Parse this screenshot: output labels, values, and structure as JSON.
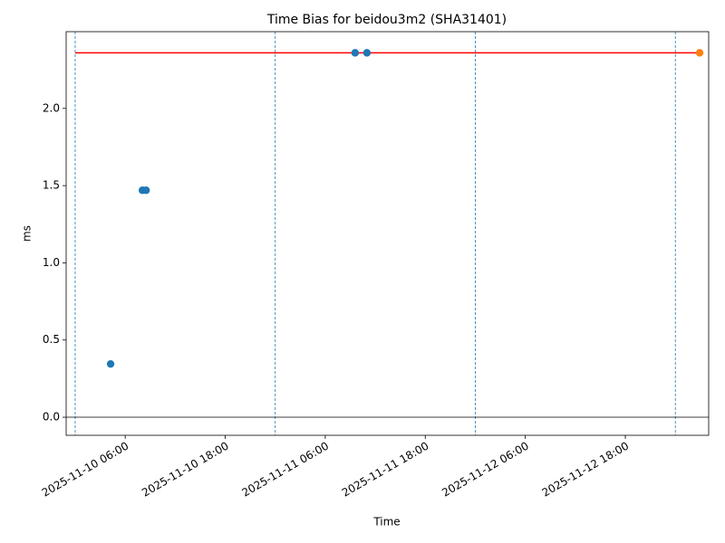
{
  "chart_data": {
    "type": "scatter",
    "title": "Time Bias for beidou3m2 (SHA31401)",
    "xlabel": "Time",
    "ylabel": "ms",
    "series": [
      {
        "color": "#1f77b4",
        "x": [
          "2025-11-10T04:15",
          "2025-11-10T08:04",
          "2025-11-10T08:30",
          "2025-11-11T09:35",
          "2025-11-11T11:00"
        ],
        "values": [
          0.345,
          1.47,
          1.47,
          2.36,
          2.36
        ]
      },
      {
        "color": "#ff7f0e",
        "x": [
          "2025-11-13T02:55"
        ],
        "values": [
          2.36
        ]
      }
    ],
    "reference_line": {
      "value": 2.36,
      "color": "#ff0000",
      "x": [
        "2025-11-10T00:00",
        "2025-11-13T02:55"
      ]
    },
    "zero_line": {
      "value": 0,
      "color": "#000000"
    },
    "vlines": {
      "color": "#1f77b4",
      "x": [
        "2025-11-10T00:00",
        "2025-11-11T00:00",
        "2025-11-12T00:00",
        "2025-11-13T00:00"
      ]
    },
    "xlim": [
      "2025-11-09T22:55",
      "2025-11-13T04:00"
    ],
    "xticks": [
      {
        "value": "2025-11-10T06:00",
        "label": "2025-11-10 06:00"
      },
      {
        "value": "2025-11-10T18:00",
        "label": "2025-11-10 18:00"
      },
      {
        "value": "2025-11-11T06:00",
        "label": "2025-11-11 06:00"
      },
      {
        "value": "2025-11-11T18:00",
        "label": "2025-11-11 18:00"
      },
      {
        "value": "2025-11-12T06:00",
        "label": "2025-11-12 06:00"
      },
      {
        "value": "2025-11-12T18:00",
        "label": "2025-11-12 18:00"
      }
    ],
    "ylim": [
      -0.117,
      2.497
    ],
    "yticks": [
      {
        "value": 0,
        "label": "0.0"
      },
      0.5,
      {
        "value": 1,
        "label": "1.0"
      },
      1.5,
      {
        "value": 2,
        "label": "2.0"
      }
    ]
  }
}
